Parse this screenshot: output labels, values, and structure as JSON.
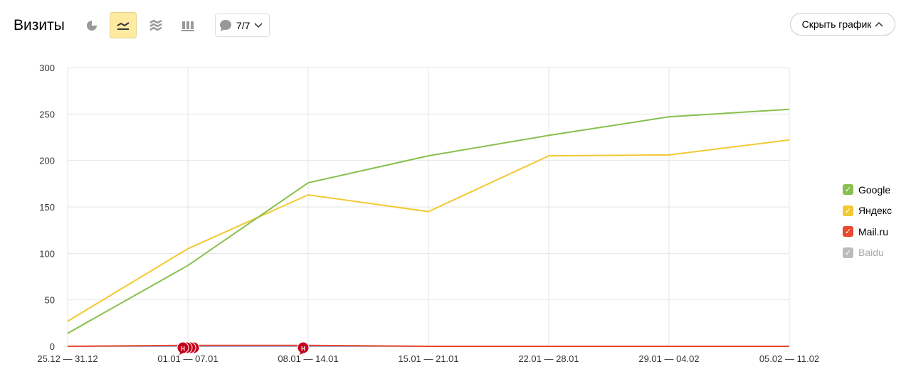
{
  "header": {
    "title": "Визиты",
    "notes_count": "7/7",
    "hide_label": "Скрыть график"
  },
  "toolbar": {
    "icons": [
      "pie-chart-icon",
      "line-chart-icon",
      "area-chart-icon",
      "bar-chart-icon"
    ],
    "active": "line-chart-icon"
  },
  "chart_data": {
    "type": "line",
    "categories": [
      "25.12 — 31.12",
      "01.01 — 07.01",
      "08.01 — 14.01",
      "15.01 — 21.01",
      "22.01 — 28.01",
      "29.01 — 04.02",
      "05.02 — 11.02"
    ],
    "ylim": [
      0,
      300
    ],
    "yticks": [
      0,
      50,
      100,
      150,
      200,
      250,
      300
    ],
    "grid": true,
    "legend_position": "right",
    "series": [
      {
        "name": "Google",
        "color": "#88bf4d",
        "values": [
          14,
          87,
          176,
          205,
          227,
          247,
          255
        ],
        "enabled": true
      },
      {
        "name": "Яндекс",
        "color": "#f2c933",
        "values": [
          27,
          105,
          163,
          145,
          205,
          206,
          222
        ],
        "enabled": true
      },
      {
        "name": "Mail.ru",
        "color": "#e9492f",
        "values": [
          0,
          1,
          1,
          0,
          0,
          0,
          0
        ],
        "enabled": true
      },
      {
        "name": "Baidu",
        "color": "#bbbbbb",
        "values": [
          0,
          0,
          0,
          0,
          0,
          0,
          0
        ],
        "enabled": false
      }
    ],
    "annotations": [
      {
        "category": "01.01 — 07.01",
        "label": "Н",
        "count": 4
      },
      {
        "category": "08.01 — 14.01",
        "label": "Н",
        "count": 1
      }
    ]
  }
}
